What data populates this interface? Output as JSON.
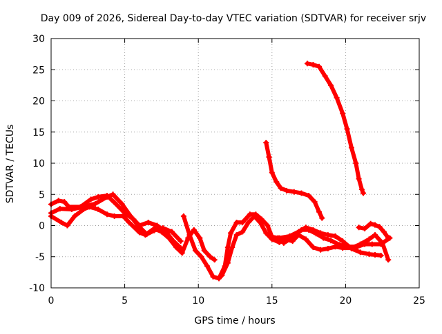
{
  "chart_data": {
    "type": "scatter",
    "title": "Day 009 of 2026, Sidereal Day-to-day VTEC variation (SDTVAR) for receiver srjv",
    "xlabel": "GPS time / hours",
    "ylabel": "SDTVAR / TECUs",
    "xlim": [
      0,
      25
    ],
    "ylim": [
      -10,
      30
    ],
    "xticks": [
      0,
      5,
      10,
      15,
      20,
      25
    ],
    "yticks": [
      -10,
      -5,
      0,
      5,
      10,
      15,
      20,
      25,
      30
    ],
    "grid": true,
    "marker_color": "#ff0000",
    "series": [
      {
        "name": "track-1",
        "points": [
          [
            0,
            3.4
          ],
          [
            0.5,
            4.0
          ],
          [
            0.9,
            3.8
          ],
          [
            1.2,
            3.0
          ],
          [
            2,
            3.0
          ],
          [
            2.7,
            4.2
          ],
          [
            3.2,
            4.6
          ],
          [
            3.8,
            4.8
          ],
          [
            4.3,
            3.7
          ],
          [
            5.0,
            2.0
          ],
          [
            5.6,
            1.0
          ],
          [
            6.0,
            0.0
          ],
          [
            6.6,
            0.5
          ],
          [
            7.2,
            0.0
          ],
          [
            7.8,
            -1.0
          ],
          [
            8.3,
            -2.5
          ],
          [
            8.8,
            -3.6
          ]
        ]
      },
      {
        "name": "track-2",
        "points": [
          [
            0,
            2.0
          ],
          [
            0.6,
            2.7
          ],
          [
            1.4,
            2.6
          ],
          [
            2.2,
            3.0
          ],
          [
            3.0,
            3.5
          ],
          [
            3.8,
            4.6
          ],
          [
            4.2,
            5.0
          ],
          [
            4.8,
            3.5
          ],
          [
            5.4,
            1.5
          ],
          [
            5.9,
            0.0
          ],
          [
            6.5,
            -1.4
          ],
          [
            7.0,
            -0.8
          ],
          [
            7.6,
            -0.4
          ],
          [
            8.2,
            -1.0
          ],
          [
            8.8,
            -2.5
          ]
        ]
      },
      {
        "name": "track-3",
        "points": [
          [
            0,
            1.5
          ],
          [
            0.7,
            0.5
          ],
          [
            1.1,
            0.0
          ],
          [
            1.6,
            1.5
          ],
          [
            2.2,
            2.6
          ],
          [
            2.6,
            3.0
          ],
          [
            3.2,
            2.6
          ],
          [
            3.8,
            1.8
          ],
          [
            4.3,
            1.5
          ],
          [
            4.9,
            1.5
          ],
          [
            5.3,
            0.5
          ],
          [
            6.0,
            -1.1
          ],
          [
            6.4,
            -1.5
          ],
          [
            7.0,
            -0.5
          ],
          [
            7.5,
            -1.0
          ],
          [
            8.0,
            -2.0
          ],
          [
            8.5,
            -3.5
          ],
          [
            8.9,
            -4.4
          ],
          [
            9.3,
            -2.0
          ],
          [
            9.7,
            -0.7
          ],
          [
            10.1,
            -2.0
          ],
          [
            10.4,
            -4.0
          ],
          [
            10.8,
            -5.0
          ],
          [
            11.1,
            -5.5
          ]
        ]
      },
      {
        "name": "track-4",
        "points": [
          [
            9.0,
            1.5
          ],
          [
            9.4,
            -1.5
          ],
          [
            9.8,
            -4.0
          ],
          [
            10.2,
            -5.0
          ],
          [
            10.6,
            -6.5
          ],
          [
            11.0,
            -8.2
          ],
          [
            11.4,
            -8.5
          ],
          [
            11.8,
            -6.5
          ],
          [
            12.0,
            -3.5
          ],
          [
            12.2,
            -1.2
          ],
          [
            12.6,
            0.5
          ],
          [
            13.0,
            0.5
          ],
          [
            13.5,
            1.8
          ],
          [
            13.9,
            1.8
          ],
          [
            14.3,
            1.0
          ],
          [
            14.7,
            0.0
          ],
          [
            15.0,
            -1.8
          ],
          [
            15.4,
            -2.0
          ],
          [
            15.8,
            -2.8
          ],
          [
            16.2,
            -2.2
          ],
          [
            16.6,
            -1.5
          ],
          [
            17.0,
            -0.7
          ],
          [
            17.5,
            -0.7
          ],
          [
            18.0,
            -1.3
          ],
          [
            18.5,
            -2.0
          ],
          [
            19.0,
            -2.4
          ],
          [
            19.6,
            -3.1
          ],
          [
            20.2,
            -3.4
          ],
          [
            20.8,
            -3.4
          ],
          [
            21.3,
            -3.0
          ],
          [
            21.8,
            -3.0
          ],
          [
            22.4,
            -3.0
          ],
          [
            23.0,
            -2.0
          ]
        ]
      },
      {
        "name": "track-5",
        "points": [
          [
            11.6,
            -8.0
          ],
          [
            12.0,
            -6.0
          ],
          [
            12.3,
            -3.5
          ],
          [
            12.6,
            -1.5
          ],
          [
            13.0,
            -1.0
          ],
          [
            13.4,
            0.5
          ],
          [
            13.8,
            1.5
          ],
          [
            14.2,
            0.5
          ],
          [
            14.6,
            -1.2
          ],
          [
            15.0,
            -2.2
          ],
          [
            15.5,
            -2.7
          ],
          [
            16.0,
            -2.3
          ],
          [
            16.4,
            -2.5
          ],
          [
            16.8,
            -1.5
          ],
          [
            17.3,
            -2.2
          ],
          [
            17.8,
            -3.5
          ],
          [
            18.3,
            -3.9
          ],
          [
            18.8,
            -3.7
          ],
          [
            19.3,
            -3.4
          ],
          [
            19.8,
            -3.6
          ],
          [
            20.4,
            -3.6
          ],
          [
            21.0,
            -3.0
          ],
          [
            21.6,
            -2.2
          ],
          [
            22.0,
            -1.5
          ],
          [
            22.5,
            -2.8
          ],
          [
            22.9,
            -5.5
          ]
        ]
      },
      {
        "name": "track-6",
        "points": [
          [
            15.5,
            -2.0
          ],
          [
            16.2,
            -1.7
          ],
          [
            16.8,
            -1.0
          ],
          [
            17.3,
            -0.3
          ],
          [
            17.8,
            -0.7
          ],
          [
            18.3,
            -1.2
          ],
          [
            18.8,
            -1.5
          ],
          [
            19.3,
            -1.7
          ],
          [
            19.8,
            -2.5
          ],
          [
            20.4,
            -3.7
          ],
          [
            21.0,
            -4.3
          ],
          [
            21.6,
            -4.6
          ],
          [
            22.0,
            -4.7
          ],
          [
            22.4,
            -4.8
          ]
        ]
      },
      {
        "name": "track-7",
        "points": [
          [
            14.6,
            13.3
          ],
          [
            14.8,
            11.0
          ],
          [
            15.0,
            8.5
          ],
          [
            15.3,
            7.0
          ],
          [
            15.6,
            6.0
          ],
          [
            16.0,
            5.6
          ],
          [
            16.5,
            5.4
          ],
          [
            17.0,
            5.2
          ],
          [
            17.5,
            4.8
          ],
          [
            17.9,
            3.8
          ],
          [
            18.2,
            2.2
          ],
          [
            18.4,
            1.2
          ]
        ]
      },
      {
        "name": "track-8",
        "points": [
          [
            17.4,
            26.0
          ],
          [
            17.8,
            25.8
          ],
          [
            18.2,
            25.5
          ],
          [
            18.6,
            24.0
          ],
          [
            19.0,
            22.5
          ],
          [
            19.4,
            20.5
          ],
          [
            19.8,
            18.0
          ],
          [
            20.1,
            15.5
          ],
          [
            20.4,
            12.5
          ],
          [
            20.7,
            10.0
          ],
          [
            20.9,
            7.5
          ],
          [
            21.1,
            5.8
          ],
          [
            21.2,
            5.2
          ]
        ]
      },
      {
        "name": "track-9",
        "points": [
          [
            20.9,
            -0.3
          ],
          [
            21.3,
            -0.5
          ],
          [
            21.7,
            0.3
          ],
          [
            22.0,
            0.1
          ],
          [
            22.3,
            -0.2
          ],
          [
            22.6,
            -1.0
          ],
          [
            22.9,
            -2.0
          ]
        ]
      }
    ]
  }
}
